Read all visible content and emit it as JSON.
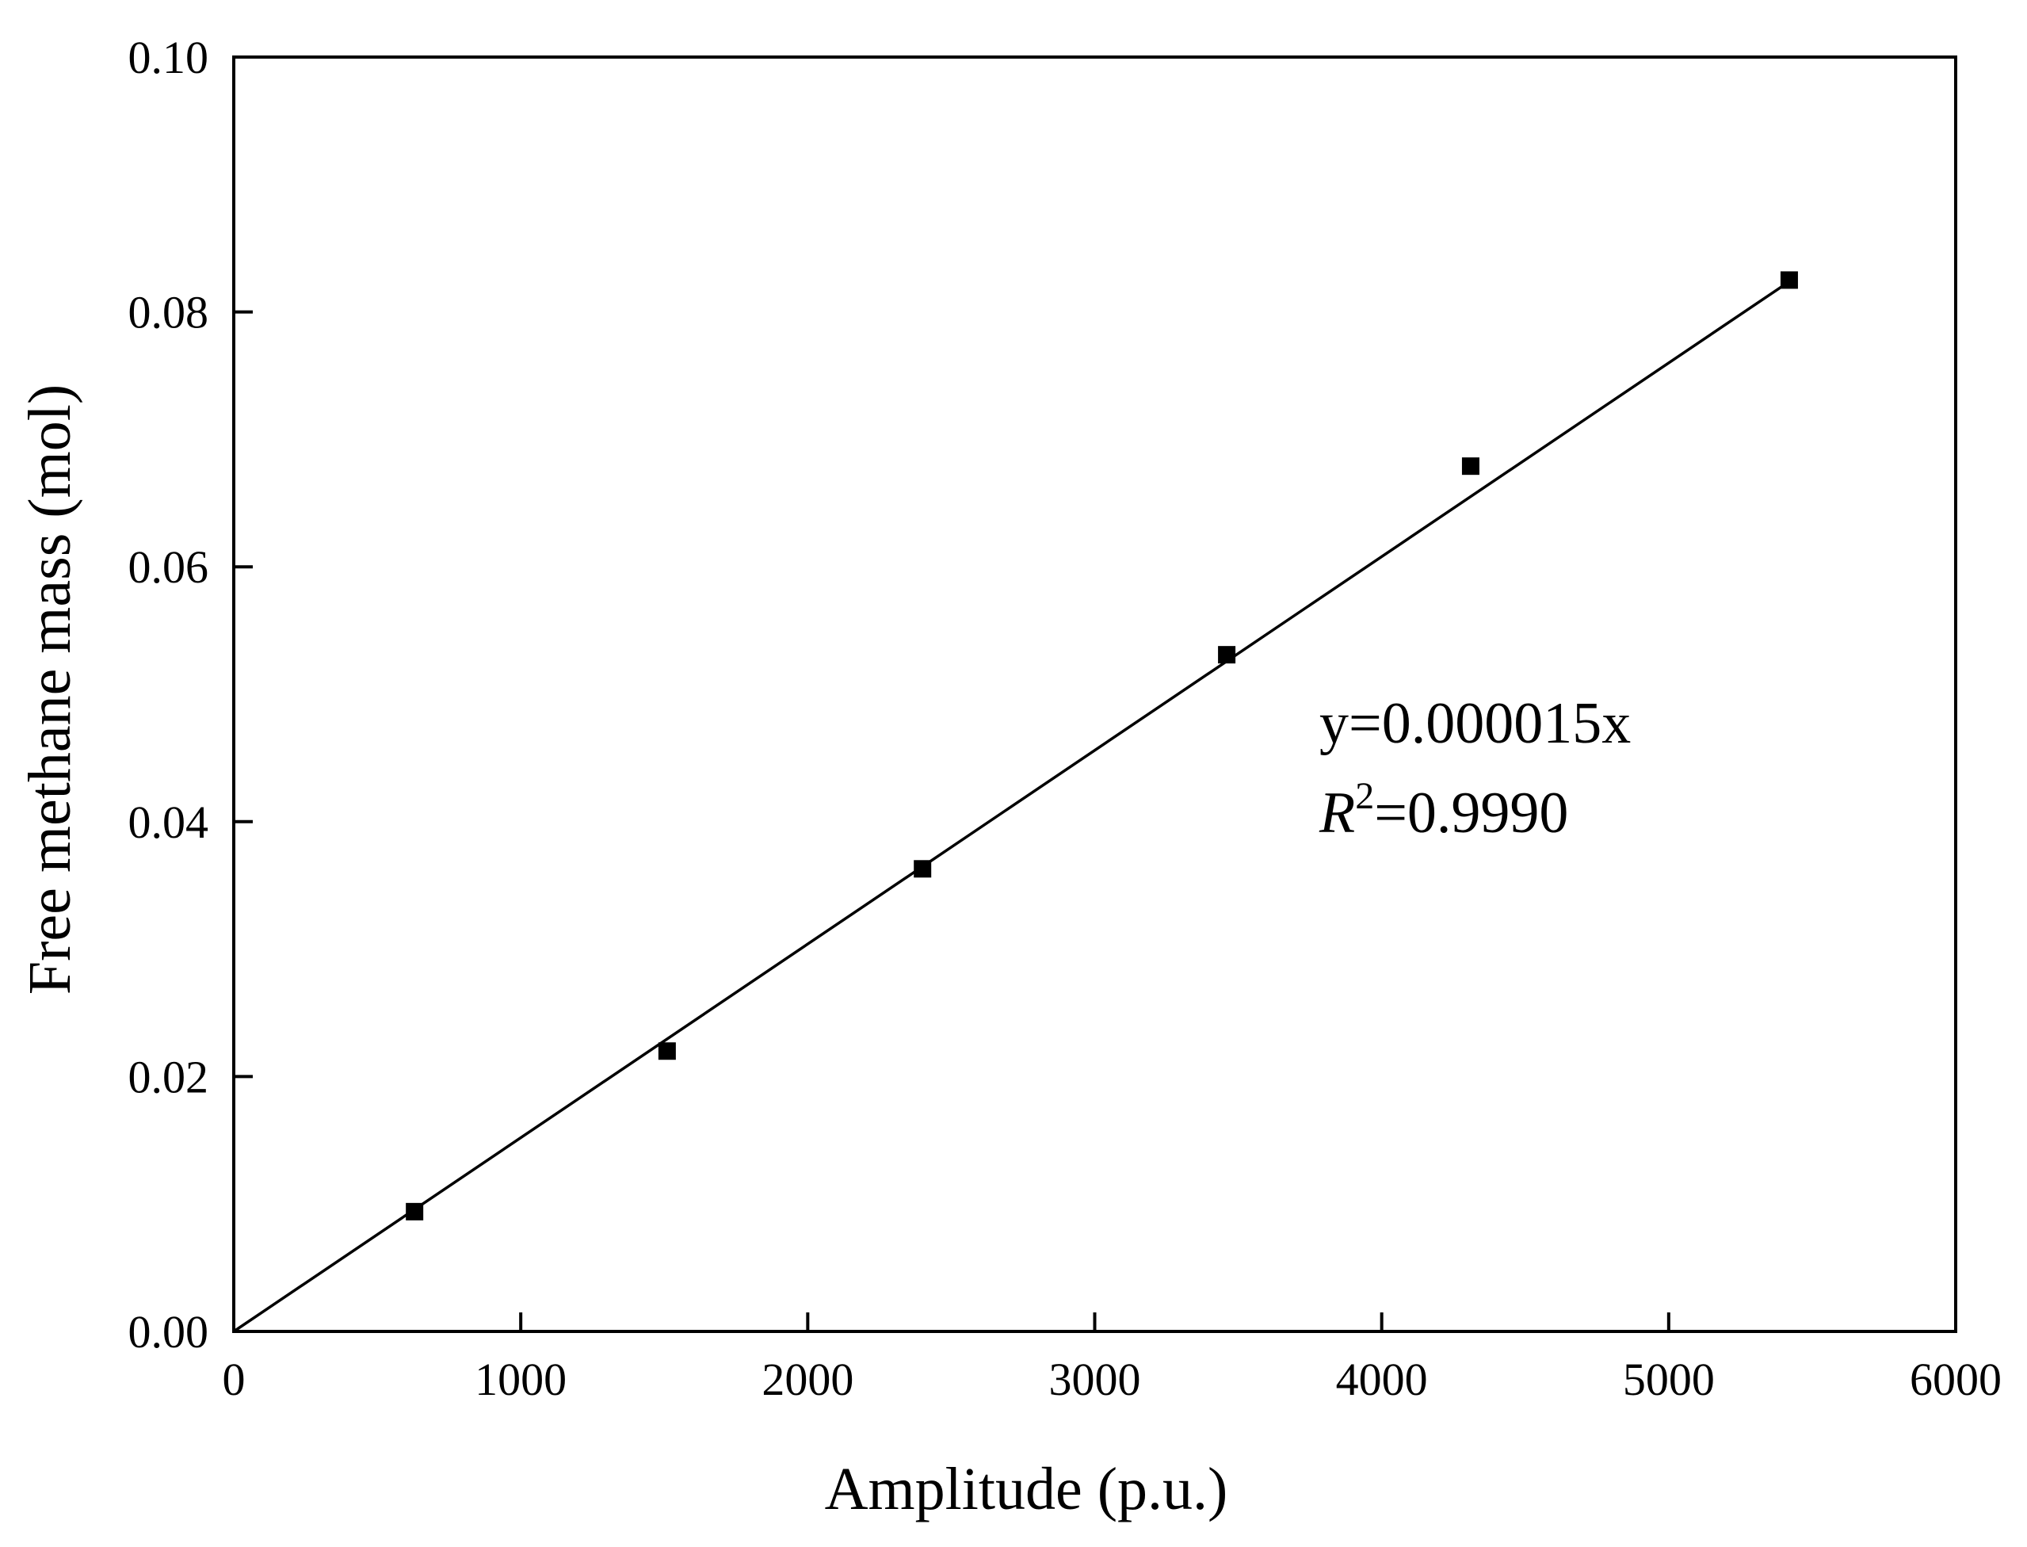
{
  "chart_data": {
    "type": "scatter",
    "xlabel": "Amplitude (p.u.)",
    "ylabel": "Free methane mass (mol)",
    "xlim": [
      0,
      6000
    ],
    "ylim": [
      0,
      0.1
    ],
    "x_ticks": [
      0,
      1000,
      2000,
      3000,
      4000,
      5000,
      6000
    ],
    "x_tick_labels": [
      "0",
      "1000",
      "2000",
      "3000",
      "4000",
      "5000",
      "6000"
    ],
    "y_ticks": [
      0,
      0.02,
      0.04,
      0.06,
      0.08,
      0.1
    ],
    "y_tick_labels": [
      "0.00",
      "0.02",
      "0.04",
      "0.06",
      "0.08",
      "0.10"
    ],
    "grid": false,
    "series": [
      {
        "marker": "square",
        "color": "#000000",
        "points": [
          {
            "x": 630,
            "y": 0.0094
          },
          {
            "x": 1510,
            "y": 0.022
          },
          {
            "x": 2400,
            "y": 0.0363
          },
          {
            "x": 3460,
            "y": 0.0531
          },
          {
            "x": 4310,
            "y": 0.0679
          },
          {
            "x": 5420,
            "y": 0.0825
          }
        ]
      }
    ],
    "fit_line": {
      "slope": 1.52e-05,
      "intercept": 0,
      "x_range": [
        0,
        5420
      ],
      "color": "#000000"
    },
    "annotations": {
      "equation": "y=0.000015x",
      "r2_symbol": "R",
      "r2_superscript": "2",
      "r2_value": "=0.9990"
    }
  }
}
